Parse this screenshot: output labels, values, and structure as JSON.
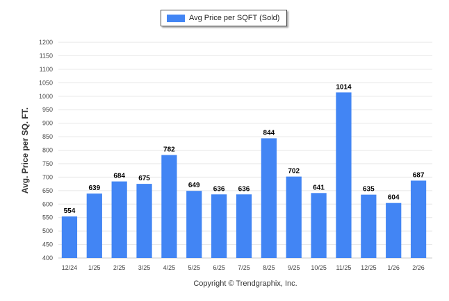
{
  "chart_data": {
    "type": "bar",
    "title": "",
    "xlabel": "",
    "ylabel": "Avg. Price per SQ. FT.",
    "ylim": [
      400,
      1200
    ],
    "yticks": [
      400,
      450,
      500,
      550,
      600,
      650,
      700,
      750,
      800,
      850,
      900,
      950,
      1000,
      1050,
      1100,
      1150,
      1200
    ],
    "categories": [
      "12/24",
      "1/25",
      "2/25",
      "3/25",
      "4/25",
      "5/25",
      "6/25",
      "7/25",
      "8/25",
      "9/25",
      "10/25",
      "11/25",
      "12/25",
      "1/26",
      "2/26"
    ],
    "series": [
      {
        "name": "Avg Price per SQFT (Sold)",
        "color": "#4285f4",
        "values": [
          554,
          639,
          684,
          675,
          782,
          649,
          636,
          636,
          844,
          702,
          641,
          1014,
          635,
          604,
          687
        ]
      }
    ],
    "legend": "top-center",
    "grid": true
  },
  "footer": "Copyright © Trendgraphix, Inc."
}
